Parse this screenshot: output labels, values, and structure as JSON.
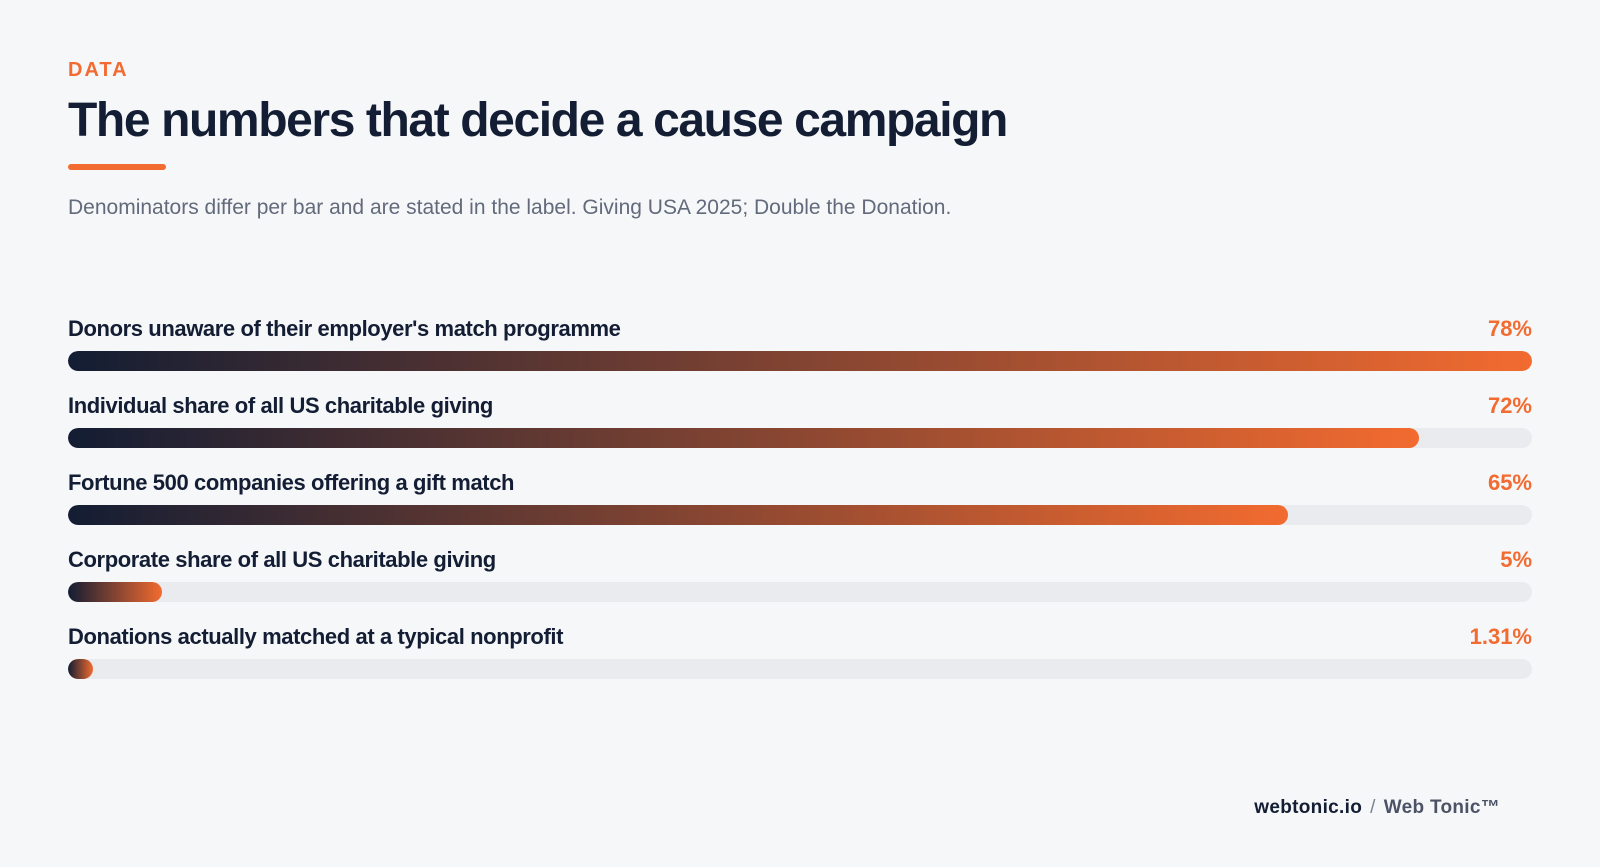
{
  "header": {
    "eyebrow": "DATA",
    "title": "The numbers that decide a cause campaign",
    "subtitle": "Denominators differ per bar and are stated in the label. Giving USA 2025; Double the Donation."
  },
  "colors": {
    "accent": "#f26b30",
    "navy": "#131d33",
    "track": "#e9ebef",
    "background": "#f6f7f9"
  },
  "chart_data": {
    "type": "bar",
    "orientation": "horizontal",
    "title": "The numbers that decide a cause campaign",
    "subtitle": "Denominators differ per bar and are stated in the label. Giving USA 2025; Double the Donation.",
    "xlim": [
      0,
      80
    ],
    "grid": false,
    "categories": [
      "Donors unaware of their employer's match programme",
      "Individual share of all US charitable giving",
      "Fortune 500 companies offering a gift match",
      "Corporate share of all US charitable giving",
      "Donations actually matched at a typical nonprofit"
    ],
    "values": [
      78,
      72,
      65,
      5,
      1.31
    ],
    "value_labels": [
      "78%",
      "72%",
      "65%",
      "5%",
      "1.31%"
    ],
    "unit": "%"
  },
  "footer": {
    "site": "webtonic.io",
    "separator": "/",
    "brand": "Web Tonic™"
  }
}
